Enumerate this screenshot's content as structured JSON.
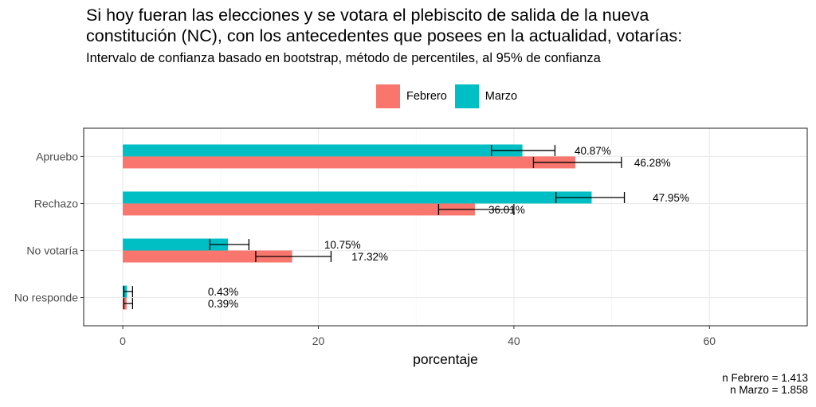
{
  "chart_data": {
    "type": "bar",
    "orientation": "horizontal",
    "title_lines": [
      "Si hoy fueran las elecciones y se votara el plebiscito de salida de la nueva",
      "constitución (NC), con los antecedentes que posees en la actualidad, votarías:"
    ],
    "subtitle": "Intervalo de confianza basado en bootstrap, método de percentiles, al 95% de confianza",
    "xlabel": "porcentaje",
    "ylabel": "",
    "xlim": [
      -4,
      70
    ],
    "xticks": [
      0,
      20,
      40,
      60
    ],
    "grid": true,
    "legend_position": "top",
    "categories": [
      "Apruebo",
      "Rechazo",
      "No votaría",
      "No responde"
    ],
    "series": [
      {
        "name": "Febrero",
        "color": "#F8766D",
        "values": [
          46.28,
          36.01,
          17.32,
          0.39
        ],
        "labels": [
          "46.28%",
          "36.01%",
          "17.32%",
          "0.39%"
        ],
        "ci_low": [
          42.0,
          32.3,
          13.6,
          0.1
        ],
        "ci_high": [
          51.0,
          40.0,
          21.3,
          1.0
        ]
      },
      {
        "name": "Marzo",
        "color": "#00BFC4",
        "values": [
          40.87,
          47.95,
          10.75,
          0.43
        ],
        "labels": [
          "40.87%",
          "47.95%",
          "10.75%",
          "0.43%"
        ],
        "ci_low": [
          37.7,
          44.3,
          8.9,
          0.1
        ],
        "ci_high": [
          44.2,
          51.3,
          12.9,
          1.0
        ]
      }
    ],
    "caption_lines": [
      "n Febrero = 1.413",
      "n Marzo = 1.858"
    ]
  }
}
